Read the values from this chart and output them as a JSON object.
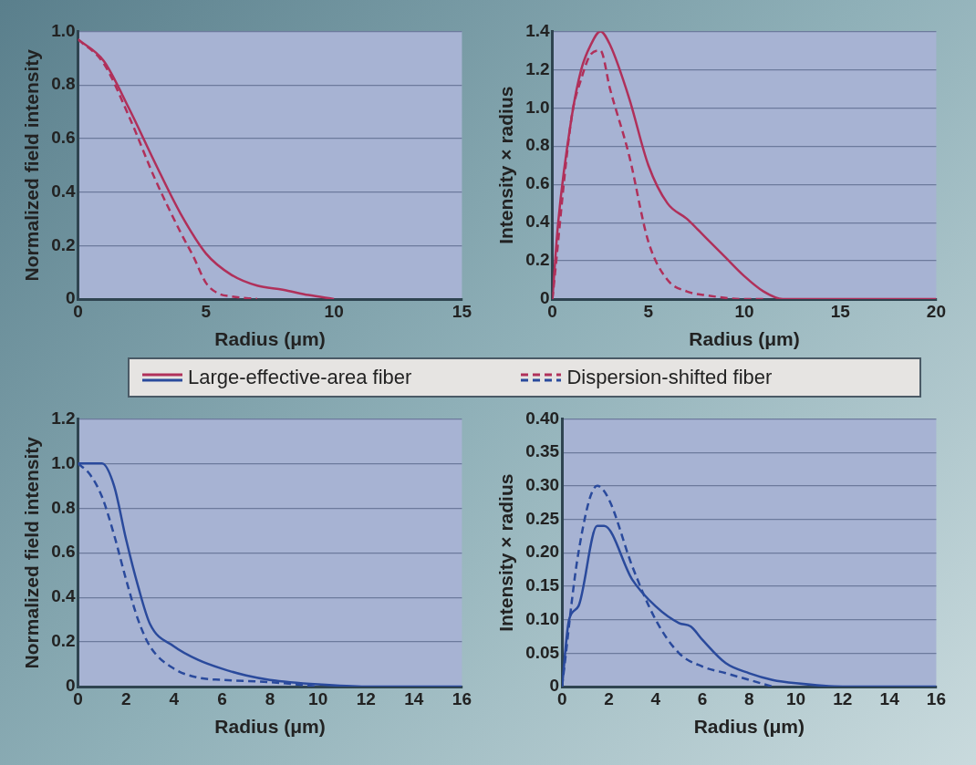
{
  "chart_data": [
    {
      "type": "line",
      "xlabel": "Radius (μm)",
      "ylabel": "Normalized field intensity",
      "xlim": [
        0,
        15
      ],
      "xticks": [
        0,
        5,
        10,
        15
      ],
      "ylim": [
        0,
        1
      ],
      "yticks": [
        {
          "value": 0,
          "label": "0"
        },
        {
          "value": 0.2,
          "label": "0.2"
        },
        {
          "value": 0.4,
          "label": "0.4"
        },
        {
          "value": 0.6,
          "label": "0.6"
        },
        {
          "value": 0.8,
          "label": "0.8"
        },
        {
          "value": 1,
          "label": "1.0"
        }
      ],
      "grid": "y",
      "marker": "none",
      "legend": "bottom",
      "series": [
        {
          "name": "Large-effective-area fiber",
          "color": "#b0305a",
          "line_style": "solid",
          "x": [
            0,
            1,
            2,
            3,
            4,
            5,
            6,
            7,
            8,
            9,
            10
          ],
          "values": [
            0.97,
            0.89,
            0.71,
            0.51,
            0.32,
            0.17,
            0.09,
            0.05,
            0.035,
            0.015,
            0
          ]
        },
        {
          "name": "Dispersion-shifted fiber",
          "color": "#b0305a",
          "line_style": "dashed",
          "x": [
            0,
            1,
            2,
            3,
            4,
            4.5,
            5,
            5.5,
            6,
            7
          ],
          "values": [
            0.97,
            0.88,
            0.68,
            0.45,
            0.25,
            0.16,
            0.06,
            0.02,
            0.01,
            0
          ]
        }
      ]
    },
    {
      "type": "line",
      "xlabel": "Radius (μm)",
      "ylabel": "Intensity × radius",
      "xlim": [
        0,
        20
      ],
      "xticks": [
        0,
        5,
        10,
        15,
        20
      ],
      "ylim": [
        0,
        1.4
      ],
      "yticks": [
        {
          "value": 0,
          "label": "0"
        },
        {
          "value": 0.2,
          "label": "0.2"
        },
        {
          "value": 0.4,
          "label": "0.4"
        },
        {
          "value": 0.6,
          "label": "0.6"
        },
        {
          "value": 0.8,
          "label": "0.8"
        },
        {
          "value": 1,
          "label": "1.0"
        },
        {
          "value": 1.2,
          "label": "1.2"
        },
        {
          "value": 1.4,
          "label": "1.4"
        }
      ],
      "grid": "y",
      "marker": "none",
      "series": [
        {
          "color": "#b0305a",
          "line_style": "solid",
          "x": [
            0,
            0.3,
            1,
            1.5,
            2,
            2.5,
            3,
            4,
            5,
            6,
            7,
            8,
            9,
            10,
            11,
            12,
            20
          ],
          "values": [
            0,
            0.4,
            0.95,
            1.2,
            1.33,
            1.4,
            1.33,
            1.05,
            0.7,
            0.5,
            0.42,
            0.32,
            0.22,
            0.12,
            0.04,
            0,
            0
          ]
        },
        {
          "color": "#b0305a",
          "line_style": "dashed",
          "x": [
            0,
            1,
            1.5,
            2,
            2.5,
            3,
            4,
            5,
            6,
            7,
            8,
            10,
            11
          ],
          "values": [
            0,
            0.95,
            1.15,
            1.28,
            1.3,
            1.1,
            0.75,
            0.3,
            0.1,
            0.04,
            0.02,
            0,
            0
          ]
        }
      ]
    },
    {
      "type": "line",
      "xlabel": "Radius (μm)",
      "ylabel": "Normalized field intensity",
      "xlim": [
        0,
        16
      ],
      "xticks": [
        0,
        2,
        4,
        6,
        8,
        10,
        12,
        14,
        16
      ],
      "ylim": [
        0,
        1.2
      ],
      "yticks": [
        {
          "value": 0,
          "label": "0"
        },
        {
          "value": 0.2,
          "label": "0.2"
        },
        {
          "value": 0.4,
          "label": "0.4"
        },
        {
          "value": 0.6,
          "label": "0.6"
        },
        {
          "value": 0.8,
          "label": "0.8"
        },
        {
          "value": 1,
          "label": "1.0"
        },
        {
          "value": 1.2,
          "label": "1.2"
        }
      ],
      "grid": "y",
      "marker": "none",
      "series": [
        {
          "color": "#2a4a9c",
          "line_style": "solid",
          "x": [
            0,
            1,
            1.5,
            2,
            2.5,
            3,
            4,
            5,
            6,
            7,
            8,
            10,
            12,
            16
          ],
          "values": [
            1,
            1,
            0.9,
            0.66,
            0.45,
            0.28,
            0.18,
            0.12,
            0.08,
            0.05,
            0.03,
            0.01,
            0,
            0
          ]
        },
        {
          "color": "#2a4a9c",
          "line_style": "dashed",
          "x": [
            0,
            0.5,
            1,
            1.5,
            2,
            2.5,
            3,
            4,
            5,
            6,
            8,
            10
          ],
          "values": [
            1,
            0.95,
            0.85,
            0.68,
            0.48,
            0.3,
            0.18,
            0.08,
            0.04,
            0.03,
            0.02,
            0
          ]
        }
      ]
    },
    {
      "type": "line",
      "xlabel": "Radius (μm)",
      "ylabel": "Intensity × radius",
      "xlim": [
        0,
        16
      ],
      "xticks": [
        0,
        2,
        4,
        6,
        8,
        10,
        12,
        14,
        16
      ],
      "ylim": [
        0,
        0.4
      ],
      "yticks": [
        {
          "value": 0,
          "label": "0"
        },
        {
          "value": 0.05,
          "label": "0.05"
        },
        {
          "value": 0.1,
          "label": "0.10"
        },
        {
          "value": 0.15,
          "label": "0.15"
        },
        {
          "value": 0.2,
          "label": "0.20"
        },
        {
          "value": 0.25,
          "label": "0.25"
        },
        {
          "value": 0.3,
          "label": "0.30"
        },
        {
          "value": 0.35,
          "label": "0.35"
        },
        {
          "value": 0.4,
          "label": "0.40"
        }
      ],
      "grid": "y",
      "marker": "none",
      "series": [
        {
          "color": "#2a4a9c",
          "line_style": "solid",
          "x": [
            0,
            0.3,
            0.7,
            1.5,
            1.8,
            3,
            4,
            5,
            5.5,
            6,
            7,
            8,
            9,
            10,
            12,
            16
          ],
          "values": [
            0,
            0.1,
            0.12,
            0.24,
            0.24,
            0.16,
            0.12,
            0.095,
            0.09,
            0.07,
            0.035,
            0.02,
            0.01,
            0.005,
            0,
            0
          ]
        },
        {
          "color": "#2a4a9c",
          "line_style": "dashed",
          "x": [
            0,
            0.7,
            1.5,
            2,
            3,
            4,
            5,
            6,
            7,
            8,
            9
          ],
          "values": [
            0,
            0.2,
            0.3,
            0.28,
            0.18,
            0.1,
            0.05,
            0.03,
            0.02,
            0.01,
            0
          ]
        }
      ]
    }
  ]
}
